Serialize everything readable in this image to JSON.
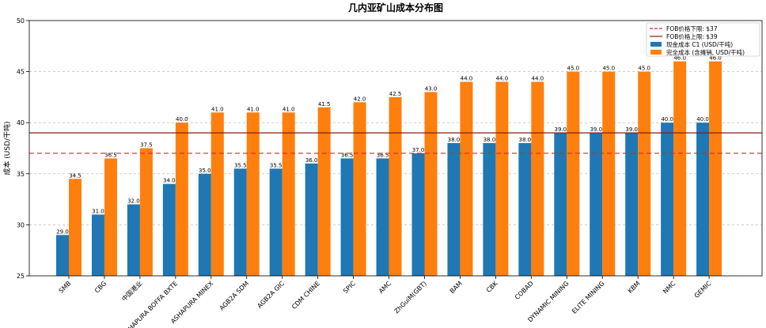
{
  "chart_data": {
    "type": "bar",
    "title": "几内亚矿山成本分布图",
    "xlabel": "",
    "ylabel": "成本 (USD/干吨)",
    "ylim": [
      25,
      50
    ],
    "yticks": [
      25,
      30,
      35,
      40,
      45,
      50
    ],
    "grid": true,
    "legend_position": "top-right",
    "categories": [
      "SMB",
      "CBG",
      "中国港业",
      "ASHAPURA BOFFA BXTE",
      "ASHAPURA MINEX",
      "AGB2A SDM",
      "AGB2A GIC",
      "CDM CHINE",
      "SPIC",
      "AMC",
      "ZhGuiM(GBT)",
      "BAM",
      "CBK",
      "COBAD",
      "DYNAMIC MINING",
      "ELITE MINING",
      "KBM",
      "NMC",
      "GEMIC"
    ],
    "series": [
      {
        "name": "现金成本 C1 (USD/干吨)",
        "color": "#1f77b4",
        "values": [
          29.0,
          31.0,
          32.0,
          34.0,
          35.0,
          35.5,
          35.5,
          36.0,
          36.5,
          36.5,
          37.0,
          38.0,
          38.0,
          38.0,
          39.0,
          39.0,
          39.0,
          40.0,
          40.0
        ],
        "labels": [
          "29.0",
          "31.0",
          "32.0",
          "34.0",
          "35.0",
          "35.5",
          "35.5",
          "36.0",
          "36.5",
          "36.5",
          "37.0",
          "38.0",
          "38.0",
          "38.0",
          "39.0",
          "39.0",
          "39.0",
          "40.0",
          "40.0"
        ]
      },
      {
        "name": "完全成本 (含摊销, USD/干吨)",
        "color": "#ff7f0e",
        "values": [
          34.5,
          36.5,
          37.5,
          40.0,
          41.0,
          41.0,
          41.0,
          41.5,
          42.0,
          42.5,
          43.0,
          44.0,
          44.0,
          44.0,
          45.0,
          45.0,
          45.0,
          46.0,
          46.0
        ],
        "labels": [
          "34.5",
          "36.5",
          "37.5",
          "40.0",
          "41.0",
          "41.0",
          "41.0",
          "41.5",
          "42.0",
          "42.5",
          "43.0",
          "44.0",
          "44.0",
          "44.0",
          "45.0",
          "45.0",
          "45.0",
          "46.0",
          "46.0"
        ]
      }
    ],
    "reference_lines": [
      {
        "name": "FOB价格下限: $37",
        "value": 37,
        "color": "#d62728",
        "style": "dashed"
      },
      {
        "name": "FOB价格上限: $39",
        "value": 39,
        "color": "#8b1a1a",
        "style": "solid"
      }
    ]
  }
}
